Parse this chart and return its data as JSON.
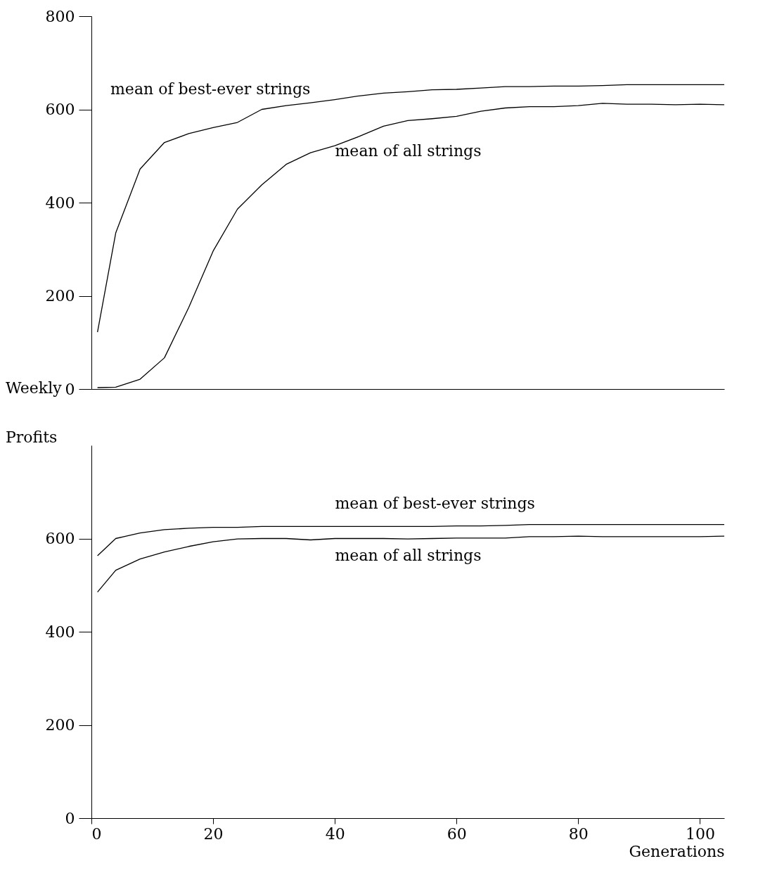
{
  "chart_data": [
    {
      "type": "line",
      "ylabel": "Weekly Profits",
      "x": [
        1,
        4,
        8,
        12,
        16,
        20,
        24,
        28,
        32,
        36,
        40,
        44,
        48,
        52,
        56,
        60,
        64,
        68,
        72,
        76,
        80,
        84,
        88,
        92,
        96,
        100,
        104
      ],
      "series": [
        {
          "color": "#000000",
          "values": [
            122,
            335,
            472,
            529,
            548,
            561,
            572,
            600,
            608,
            614,
            621,
            629,
            635,
            638,
            642,
            643,
            646,
            649,
            649,
            650,
            650,
            651,
            653,
            653,
            653,
            653,
            653
          ]
        },
        {
          "color": "#000000",
          "values": [
            3,
            4,
            21,
            67,
            175,
            296,
            386,
            438,
            482,
            507,
            522,
            542,
            564,
            576,
            580,
            585,
            596,
            603,
            606,
            606,
            608,
            613,
            611,
            611,
            610,
            611,
            610
          ]
        }
      ],
      "xlim": [
        0,
        104
      ],
      "xticks": [
        0,
        20,
        40,
        60,
        80,
        100
      ],
      "ylim": [
        0,
        800
      ],
      "yticks": [
        0,
        200,
        400,
        600,
        800
      ],
      "tick_labels": "y",
      "grid": false,
      "legend": false,
      "annotations": [
        "mean of best-ever strings",
        "mean of all strings"
      ]
    },
    {
      "type": "line",
      "xlabel": "Generations",
      "x": [
        1,
        4,
        8,
        12,
        16,
        20,
        24,
        28,
        32,
        36,
        40,
        44,
        48,
        52,
        56,
        60,
        64,
        68,
        72,
        76,
        80,
        84,
        88,
        92,
        96,
        100,
        104
      ],
      "series": [
        {
          "color": "#000000",
          "values": [
            563,
            600,
            612,
            619,
            622,
            624,
            624,
            626,
            626,
            626,
            626,
            626,
            626,
            626,
            626,
            627,
            627,
            628,
            630,
            630,
            630,
            630,
            630,
            630,
            630,
            630,
            630
          ]
        },
        {
          "color": "#000000",
          "values": [
            485,
            532,
            556,
            571,
            583,
            593,
            599,
            600,
            600,
            597,
            600,
            600,
            600,
            599,
            600,
            601,
            601,
            601,
            604,
            604,
            605,
            604,
            604,
            604,
            604,
            604,
            605
          ]
        }
      ],
      "xlim": [
        0,
        104
      ],
      "xticks": [
        0,
        20,
        40,
        60,
        80,
        100
      ],
      "ylim": [
        0,
        800
      ],
      "yticks": [
        0,
        200,
        400,
        600
      ],
      "grid": false,
      "legend": false,
      "annotations": [
        "mean of best-ever strings",
        "mean of all strings"
      ]
    }
  ]
}
